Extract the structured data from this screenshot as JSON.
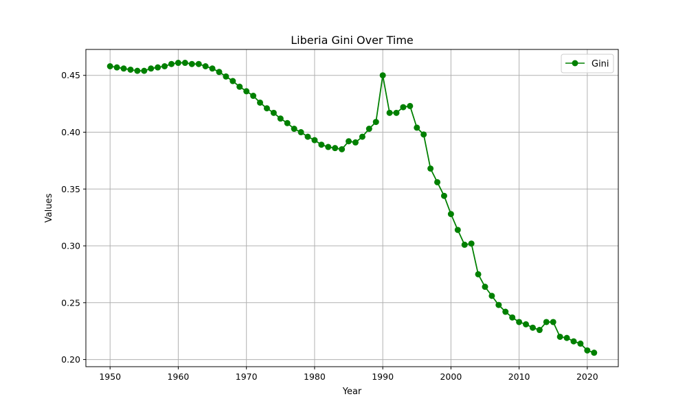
{
  "chart_data": {
    "type": "line",
    "title": "Liberia Gini Over Time",
    "xlabel": "Year",
    "ylabel": "Values",
    "xlim": [
      1946.45,
      2024.55
    ],
    "ylim": [
      0.1937,
      0.4728
    ],
    "xticks": [
      1950,
      1960,
      1970,
      1980,
      1990,
      2000,
      2010,
      2020
    ],
    "yticks": [
      0.2,
      0.25,
      0.3,
      0.35,
      0.4,
      0.45
    ],
    "ytick_labels": [
      "0.20",
      "0.25",
      "0.30",
      "0.35",
      "0.40",
      "0.45"
    ],
    "grid": true,
    "legend_position": "top-right",
    "color": "#008000",
    "series": [
      {
        "name": "Gini",
        "x": [
          1950,
          1951,
          1952,
          1953,
          1954,
          1955,
          1956,
          1957,
          1958,
          1959,
          1960,
          1961,
          1962,
          1963,
          1964,
          1965,
          1966,
          1967,
          1968,
          1969,
          1970,
          1971,
          1972,
          1973,
          1974,
          1975,
          1976,
          1977,
          1978,
          1979,
          1980,
          1981,
          1982,
          1983,
          1984,
          1985,
          1986,
          1987,
          1988,
          1989,
          1990,
          1991,
          1992,
          1993,
          1994,
          1995,
          1996,
          1997,
          1998,
          1999,
          2000,
          2001,
          2002,
          2003,
          2004,
          2005,
          2006,
          2007,
          2008,
          2009,
          2010,
          2011,
          2012,
          2013,
          2014,
          2015,
          2016,
          2017,
          2018,
          2019,
          2020,
          2021
        ],
        "values": [
          0.458,
          0.457,
          0.456,
          0.455,
          0.454,
          0.454,
          0.456,
          0.457,
          0.458,
          0.46,
          0.461,
          0.461,
          0.46,
          0.46,
          0.458,
          0.456,
          0.453,
          0.449,
          0.445,
          0.44,
          0.436,
          0.432,
          0.426,
          0.421,
          0.417,
          0.412,
          0.408,
          0.403,
          0.4,
          0.396,
          0.393,
          0.389,
          0.387,
          0.386,
          0.385,
          0.392,
          0.391,
          0.396,
          0.403,
          0.409,
          0.45,
          0.417,
          0.417,
          0.422,
          0.423,
          0.404,
          0.398,
          0.368,
          0.356,
          0.344,
          0.328,
          0.314,
          0.301,
          0.302,
          0.275,
          0.264,
          0.256,
          0.248,
          0.242,
          0.237,
          0.233,
          0.231,
          0.228,
          0.226,
          0.233,
          0.233,
          0.22,
          0.219,
          0.216,
          0.214,
          0.208,
          0.206
        ]
      }
    ]
  }
}
